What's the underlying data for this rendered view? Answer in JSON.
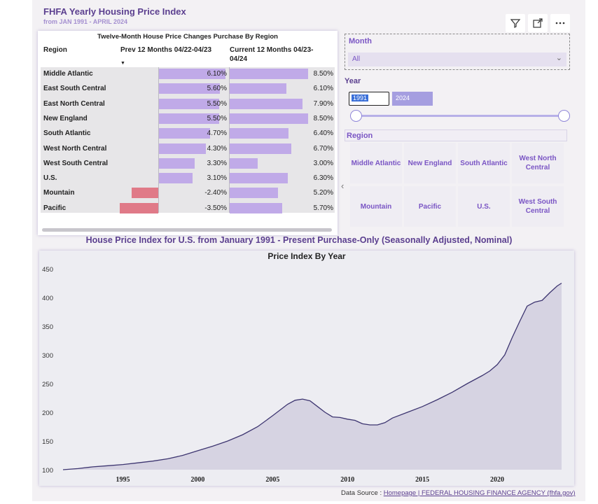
{
  "header": {
    "title": "FHFA Yearly Housing  Price Index",
    "subtitle": "from JAN 1991 - APRIL 2024"
  },
  "toolbar": {
    "filter_icon": "filter-icon",
    "expand_icon": "expand-icon",
    "more_icon": "more-options-icon"
  },
  "table": {
    "title": "Twelve-Month House Price Changes Purchase By Region",
    "col_region": "Region",
    "col_prev": "Prev 12 Months 04/22-04/23",
    "col_current": "Current 12 Months 04/23-04/24",
    "rows": [
      {
        "region": "Middle Atlantic",
        "prev": "6.10%",
        "current": "8.50%",
        "prev_value": 6.1,
        "current_value": 8.5
      },
      {
        "region": "East South Central",
        "prev": "5.60%",
        "current": "6.10%",
        "prev_value": 5.6,
        "current_value": 6.1
      },
      {
        "region": "East North Central",
        "prev": "5.50%",
        "current": "7.90%",
        "prev_value": 5.5,
        "current_value": 7.9
      },
      {
        "region": "New England",
        "prev": "5.50%",
        "current": "8.50%",
        "prev_value": 5.5,
        "current_value": 8.5
      },
      {
        "region": "South Atlantic",
        "prev": "4.70%",
        "current": "6.40%",
        "prev_value": 4.7,
        "current_value": 6.4
      },
      {
        "region": "West North Central",
        "prev": "4.30%",
        "current": "6.70%",
        "prev_value": 4.3,
        "current_value": 6.7
      },
      {
        "region": "West South Central",
        "prev": "3.30%",
        "current": "3.00%",
        "prev_value": 3.3,
        "current_value": 3.0
      },
      {
        "region": "U.S.",
        "prev": "3.10%",
        "current": "6.30%",
        "prev_value": 3.1,
        "current_value": 6.3
      },
      {
        "region": "Mountain",
        "prev": "-2.40%",
        "current": "5.20%",
        "prev_value": -2.4,
        "current_value": 5.2
      },
      {
        "region": "Pacific",
        "prev": "-3.50%",
        "current": "5.70%",
        "prev_value": -3.5,
        "current_value": 5.7
      }
    ]
  },
  "month_slicer": {
    "label": "Month",
    "value": "All"
  },
  "year_slicer": {
    "label": "Year",
    "from": "1991",
    "to": "2024"
  },
  "region_slicer": {
    "label": "Region",
    "tiles": [
      "Middle Atlantic",
      "New England",
      "South Atlantic",
      "West North Central",
      "Mountain",
      "Pacific",
      "U.S.",
      "West South Central"
    ]
  },
  "chart_heading": "House Price Index for U.S. from January 1991 - Present Purchase-Only (Seasonally Adjusted, Nominal)",
  "footer": {
    "prefix": "Data Source : ",
    "link": "Homepage | FEDERAL HOUSING FINANCE AGENCY (fhfa.gov)"
  },
  "colors": {
    "accent": "#7a55c4",
    "positive_bar": "#c0aae8",
    "negative_bar": "#e07a88",
    "area_fill": "#d6d3e2",
    "line": "#3d3570"
  },
  "chart_data": {
    "type": "area",
    "title": "Price Index By Year",
    "xlabel": "",
    "ylabel": "",
    "xlim": [
      1991,
      2024.3
    ],
    "ylim": [
      100,
      450
    ],
    "yticks": [
      100,
      150,
      200,
      250,
      300,
      350,
      400,
      450
    ],
    "xticks": [
      1995,
      2000,
      2005,
      2010,
      2015,
      2020
    ],
    "x": [
      1991,
      1992,
      1993,
      1994,
      1995,
      1996,
      1997,
      1998,
      1999,
      2000,
      2001,
      2002,
      2003,
      2004,
      2005,
      2006,
      2006.5,
      2007,
      2007.5,
      2008,
      2008.5,
      2009,
      2009.5,
      2010,
      2010.5,
      2011,
      2011.5,
      2012,
      2012.5,
      2013,
      2014,
      2015,
      2016,
      2017,
      2018,
      2019,
      2019.5,
      2020,
      2020.5,
      2021,
      2021.5,
      2022,
      2022.5,
      2023,
      2023.5,
      2024,
      2024.3
    ],
    "values": [
      100,
      102,
      105,
      107,
      109,
      112,
      115,
      119,
      125,
      133,
      141,
      150,
      161,
      175,
      194,
      214,
      221,
      223,
      220,
      210,
      200,
      192,
      191,
      188,
      186,
      180,
      178,
      178,
      182,
      190,
      200,
      210,
      222,
      235,
      250,
      264,
      272,
      283,
      300,
      330,
      358,
      385,
      392,
      395,
      408,
      420,
      425
    ]
  }
}
